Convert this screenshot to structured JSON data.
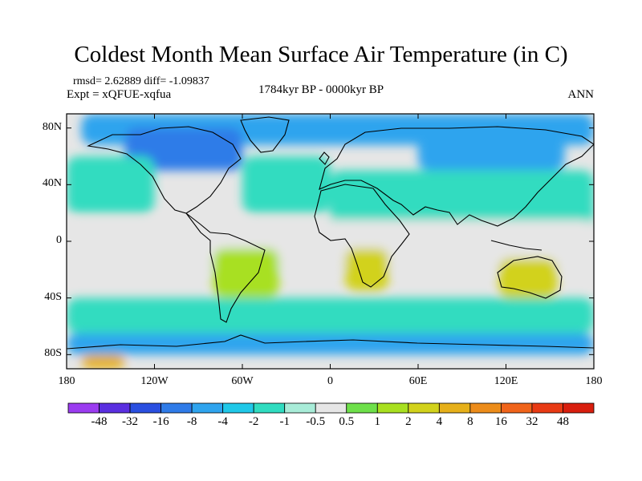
{
  "title": "Coldest Month Mean Surface Air Temperature (in C)",
  "stats": "rmsd= 2.62889  diff= -1.09837",
  "experiment": "Expt = xQFUE-xqfua",
  "period": "1784kyr BP - 0000kyr BP",
  "season": "ANN",
  "colors": {
    "background_near_zero": "#e6e6e6",
    "coastline": "#000000"
  },
  "chart_data": {
    "type": "heatmap",
    "title": "Coldest Month Mean Surface Air Temperature (in C)",
    "xlabel": "",
    "ylabel": "",
    "xlim": [
      -180,
      180
    ],
    "ylim": [
      -90,
      90
    ],
    "x_ticks": [
      {
        "value": -180,
        "label": "180"
      },
      {
        "value": -120,
        "label": "120W"
      },
      {
        "value": -60,
        "label": "60W"
      },
      {
        "value": 0,
        "label": "0"
      },
      {
        "value": 60,
        "label": "60E"
      },
      {
        "value": 120,
        "label": "120E"
      },
      {
        "value": 180,
        "label": "180"
      }
    ],
    "y_ticks": [
      {
        "value": 80,
        "label": "80N"
      },
      {
        "value": 40,
        "label": "40N"
      },
      {
        "value": 0,
        "label": "0"
      },
      {
        "value": -40,
        "label": "40S"
      },
      {
        "value": -80,
        "label": "80S"
      }
    ],
    "colorbar": {
      "levels": [
        "-48",
        "-32",
        "-16",
        "-8",
        "-4",
        "-2",
        "-1",
        "-0.5",
        "0.5",
        "1",
        "2",
        "4",
        "8",
        "16",
        "32",
        "48"
      ],
      "colors": [
        "#9b3cf0",
        "#5a2fe0",
        "#2a4fe0",
        "#2f7be8",
        "#2fa4ee",
        "#20c8e8",
        "#30dcc0",
        "#a8ecd8",
        "#e6e6e6",
        "#6ee04a",
        "#a8e020",
        "#d2d21c",
        "#e6b01a",
        "#ec8c1a",
        "#f0641a",
        "#e83a14",
        "#d81e0e"
      ]
    },
    "regions": [
      {
        "id": "nh-high-blue",
        "lon": [
          -170,
          180
        ],
        "lat": [
          68,
          90
        ],
        "value": -6
      },
      {
        "id": "north-america-cold",
        "lon": [
          -140,
          -60
        ],
        "lat": [
          50,
          80
        ],
        "value": -9
      },
      {
        "id": "siberia-cold",
        "lon": [
          60,
          160
        ],
        "lat": [
          50,
          75
        ],
        "value": -5
      },
      {
        "id": "north-pacific-cyan",
        "lon": [
          -180,
          -120
        ],
        "lat": [
          20,
          60
        ],
        "value": -1.5
      },
      {
        "id": "north-atlantic-cyan",
        "lon": [
          -60,
          0
        ],
        "lat": [
          20,
          60
        ],
        "value": -1.5
      },
      {
        "id": "eurasia-cyan",
        "lon": [
          0,
          180
        ],
        "lat": [
          10,
          50
        ],
        "value": -1.5
      },
      {
        "id": "tropics-neutral",
        "lon": [
          -180,
          180
        ],
        "lat": [
          -20,
          15
        ],
        "value": 0
      },
      {
        "id": "south-america-green",
        "lon": [
          -80,
          -35
        ],
        "lat": [
          -40,
          -5
        ],
        "value": 1.5
      },
      {
        "id": "africa-south-green",
        "lon": [
          10,
          40
        ],
        "lat": [
          -35,
          -5
        ],
        "value": 2
      },
      {
        "id": "australia-green",
        "lon": [
          115,
          155
        ],
        "lat": [
          -40,
          -12
        ],
        "value": 2
      },
      {
        "id": "southern-ocean-cyan",
        "lon": [
          -180,
          180
        ],
        "lat": [
          -65,
          -40
        ],
        "value": -1.5
      },
      {
        "id": "antarctic-blue",
        "lon": [
          -180,
          180
        ],
        "lat": [
          -80,
          -65
        ],
        "value": -5
      },
      {
        "id": "antarctic-warm",
        "lon": [
          -170,
          -140
        ],
        "lat": [
          -90,
          -80
        ],
        "value": 6
      }
    ]
  }
}
